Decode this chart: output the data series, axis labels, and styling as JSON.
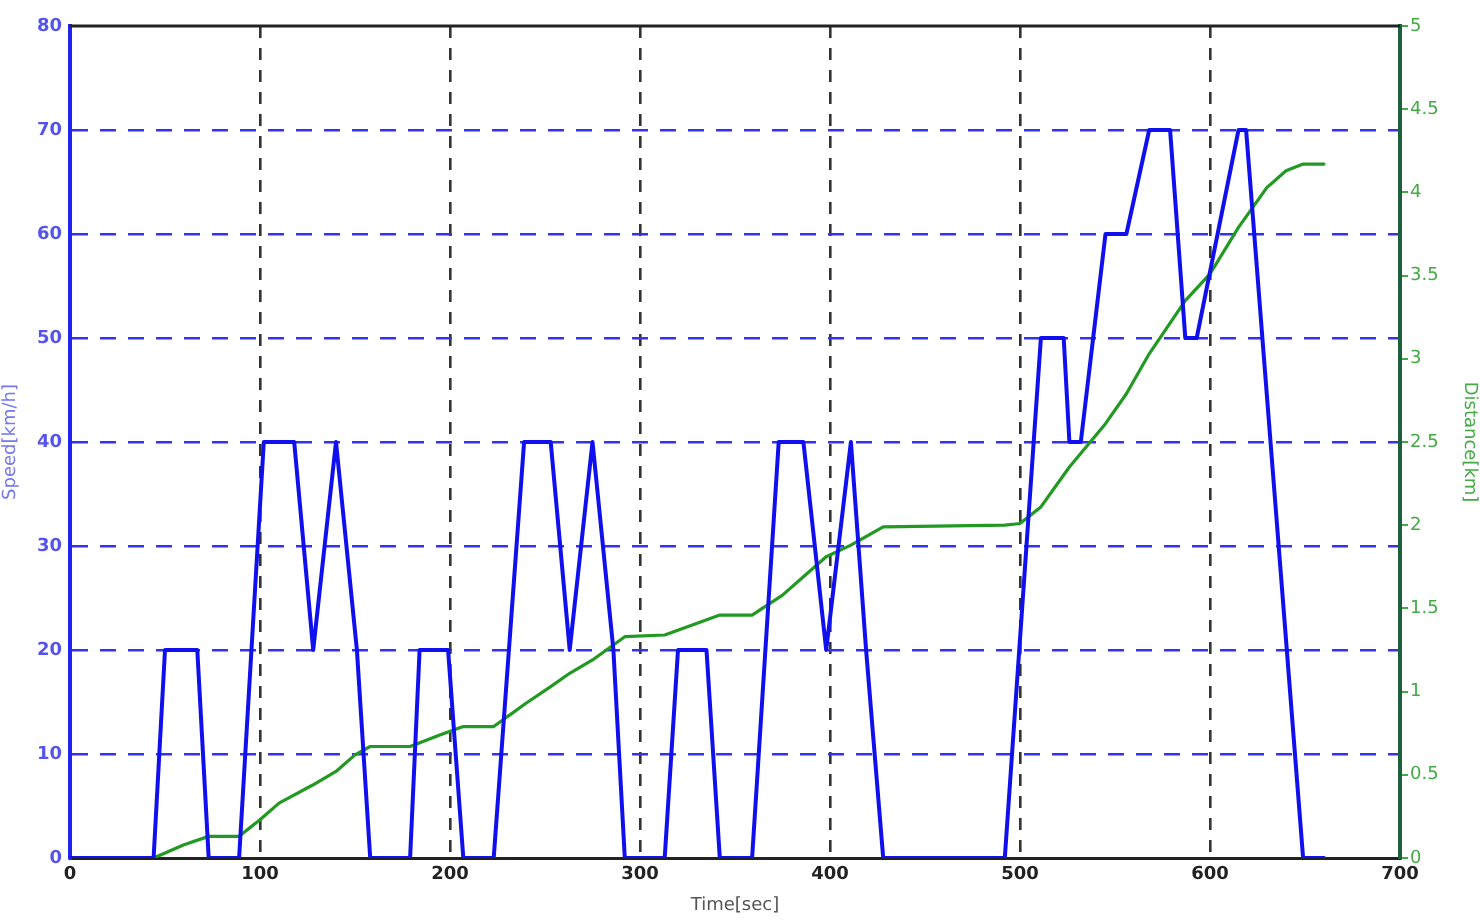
{
  "chart_data": {
    "type": "line",
    "xlabel": "Time[sec]",
    "ylabel": "Speed[km/h]",
    "y2label": "Distance[km]",
    "xlim": [
      0,
      700
    ],
    "xticks": [
      0,
      100,
      200,
      300,
      400,
      500,
      600,
      700
    ],
    "ylim": [
      0,
      80
    ],
    "yticks": [
      0,
      10,
      20,
      30,
      40,
      50,
      60,
      70,
      80
    ],
    "y2lim": [
      0,
      5
    ],
    "y2ticks": [
      0,
      0.5,
      1,
      1.5,
      2,
      2.5,
      3,
      3.5,
      4,
      4.5,
      5
    ],
    "grid": true,
    "marker": "none",
    "line_style": "solid",
    "series": [
      {
        "color": "#1010ee",
        "x": [
          0,
          44,
          50,
          67,
          73,
          89,
          102,
          118,
          128,
          140,
          151,
          158,
          179,
          184,
          199,
          207,
          223,
          239,
          253,
          263,
          275,
          286,
          292,
          313,
          320,
          335,
          342,
          359,
          373,
          386,
          398,
          411,
          419,
          428,
          492,
          511,
          523,
          526,
          532,
          545,
          556,
          568,
          579,
          587,
          593,
          615,
          619,
          649,
          660
        ],
        "values": [
          0,
          0,
          20,
          20,
          0,
          0,
          40,
          40,
          20,
          40,
          20,
          0,
          0,
          20,
          20,
          0,
          0,
          40,
          40,
          20,
          40,
          20,
          0,
          0,
          20,
          20,
          0,
          0,
          40,
          40,
          20,
          40,
          20,
          0,
          0,
          50,
          50,
          40,
          40,
          60,
          60,
          70,
          70,
          50,
          50,
          70,
          70,
          0,
          0
        ]
      },
      {
        "color": "#229922",
        "axis": "y2",
        "x": [
          0,
          44,
          60,
          73,
          89,
          100,
          110,
          128,
          140,
          150,
          158,
          179,
          195,
          207,
          223,
          240,
          253,
          263,
          275,
          292,
          313,
          325,
          342,
          359,
          375,
          386,
          398,
          411,
          428,
          492,
          500,
          511,
          526,
          545,
          556,
          568,
          587,
          600,
          615,
          630,
          640,
          649,
          660
        ],
        "values": [
          0,
          0,
          0.08,
          0.13,
          0.13,
          0.23,
          0.33,
          0.44,
          0.52,
          0.62,
          0.67,
          0.67,
          0.74,
          0.79,
          0.79,
          0.93,
          1.03,
          1.11,
          1.19,
          1.33,
          1.34,
          1.39,
          1.46,
          1.46,
          1.58,
          1.69,
          1.81,
          1.88,
          1.99,
          2.0,
          2.01,
          2.11,
          2.35,
          2.61,
          2.79,
          3.03,
          3.35,
          3.51,
          3.79,
          4.03,
          4.13,
          4.17,
          4.17
        ]
      }
    ]
  }
}
